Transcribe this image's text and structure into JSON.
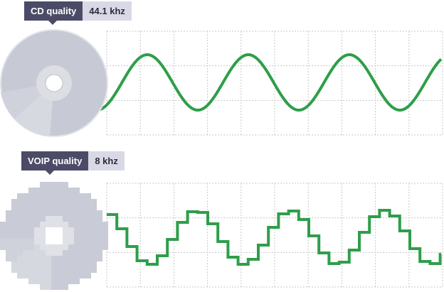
{
  "panels": [
    {
      "id": "cd",
      "quality_label": "CD quality",
      "rate_label": "44.1 khz",
      "icon": "cd-disc-icon",
      "wave": "smooth-sine"
    },
    {
      "id": "voip",
      "quality_label": "VOIP quality",
      "rate_label": "8 khz",
      "icon": "pixelated-disc-icon",
      "wave": "stepped-sine"
    }
  ],
  "colors": {
    "wave": "#2e9e4a",
    "badge_label_bg": "#4b4b68",
    "badge_value_bg": "#d9d9e6",
    "disc": "#c9ccd6",
    "grid": "#c8c8c8"
  }
}
